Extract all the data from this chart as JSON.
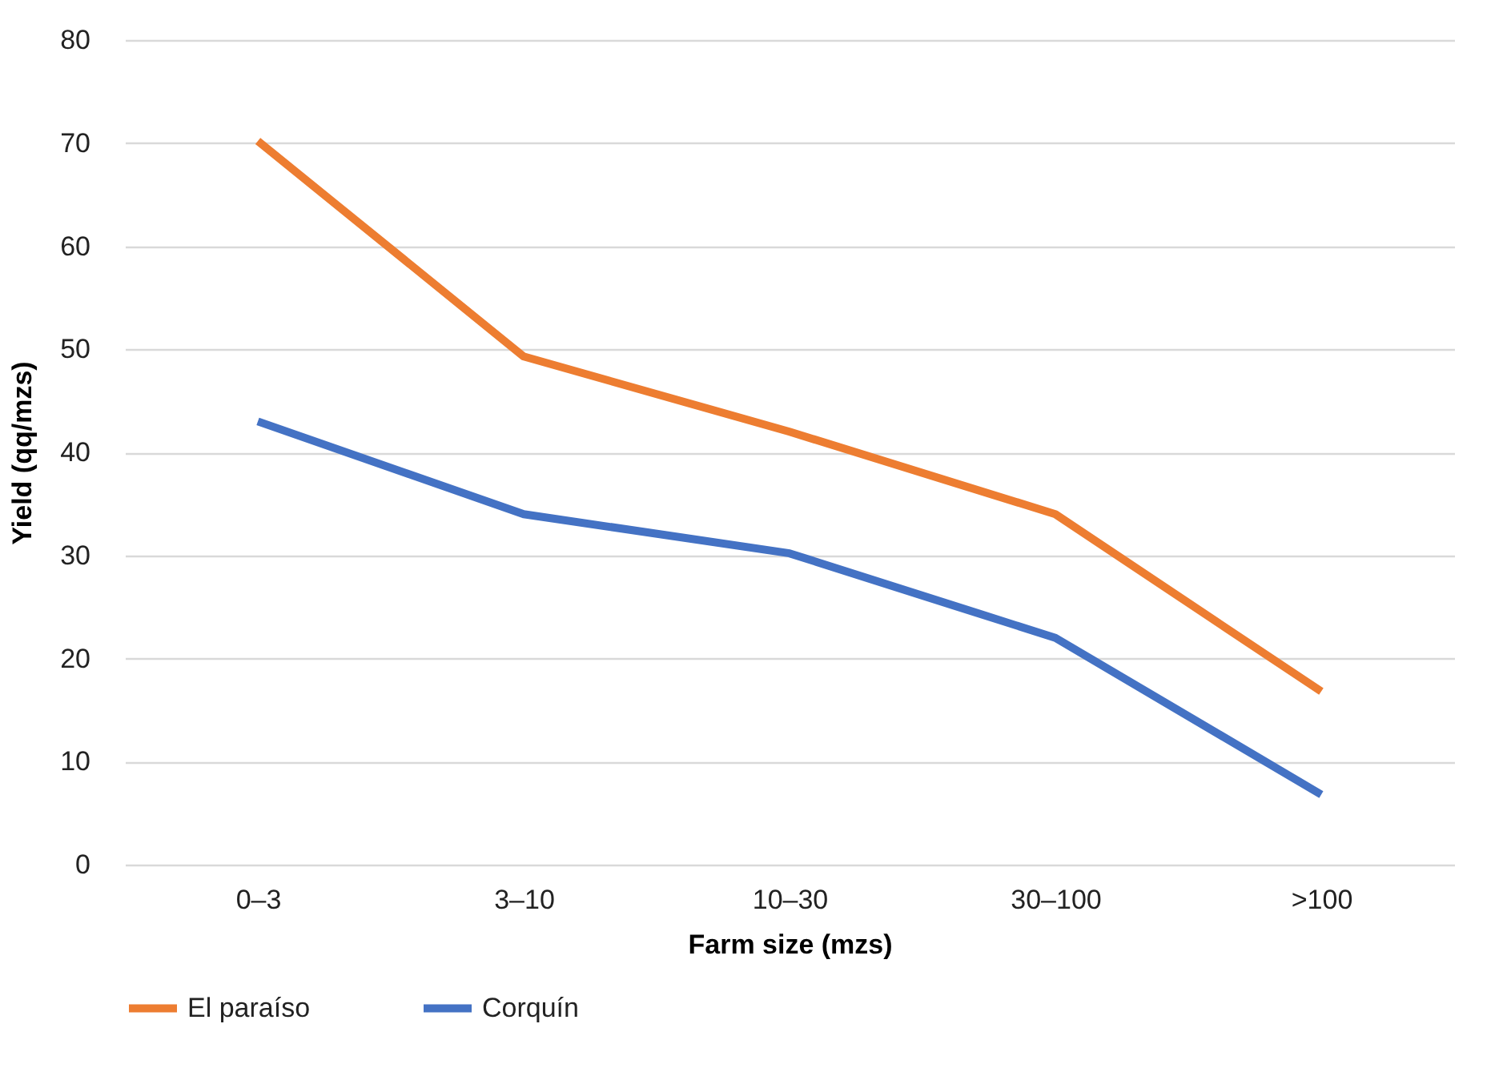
{
  "chart_data": {
    "type": "line",
    "xlabel": "Farm size (mzs)",
    "ylabel": "Yield (qq/mzs)",
    "categories": [
      "0–3",
      "3–10",
      "10–30",
      "30–100",
      ">100"
    ],
    "series": [
      {
        "name": "El paraíso",
        "color": "#ed7d31",
        "values": [
          70.2,
          49.3,
          42,
          34,
          16.8
        ]
      },
      {
        "name": "Corquín",
        "color": "#4472c4",
        "values": [
          43,
          34,
          30.2,
          22,
          6.8
        ]
      }
    ],
    "ylim": [
      0,
      80
    ],
    "yticks": [
      0,
      10,
      20,
      30,
      40,
      50,
      60,
      70,
      80
    ],
    "grid": "y",
    "legend": "bottom",
    "marker": "none",
    "line_style": "solid"
  }
}
